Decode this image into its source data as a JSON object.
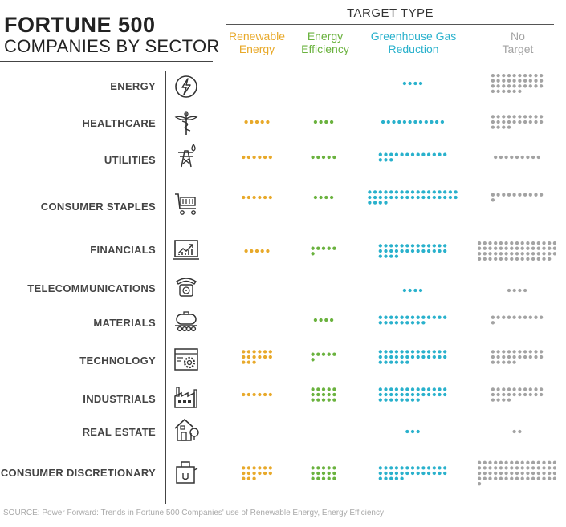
{
  "title": {
    "main": "FORTUNE 500",
    "sub": "COMPANIES BY SECTOR"
  },
  "group_header": "TARGET TYPE",
  "columns": [
    {
      "lines": [
        "Renewable",
        "Energy"
      ],
      "color": "#e8a92a"
    },
    {
      "lines": [
        "Energy",
        "Efficiency"
      ],
      "color": "#6ab23e"
    },
    {
      "lines": [
        "Greenhouse Gas",
        "Reduction"
      ],
      "color": "#29b1cc"
    },
    {
      "lines": [
        "No",
        "Target"
      ],
      "color": "#a3a3a3"
    }
  ],
  "chart_data": {
    "type": "table",
    "title": "FORTUNE 500 COMPANIES BY SECTOR",
    "series": [
      {
        "name": "Renewable Energy",
        "values": [
          0,
          5,
          6,
          6,
          5,
          0,
          0,
          15,
          6,
          0,
          15
        ]
      },
      {
        "name": "Energy Efficiency",
        "values": [
          0,
          4,
          5,
          4,
          6,
          0,
          4,
          6,
          15,
          0,
          15
        ]
      },
      {
        "name": "Greenhouse Gas Reduction",
        "values": [
          4,
          12,
          16,
          38,
          30,
          4,
          22,
          32,
          34,
          3,
          31
        ]
      },
      {
        "name": "No Target",
        "values": [
          36,
          24,
          9,
          11,
          59,
          4,
          11,
          25,
          24,
          2,
          61
        ]
      }
    ],
    "categories": [
      "ENERGY",
      "HEALTHCARE",
      "UTILITIES",
      "CONSUMER STAPLES",
      "FINANCIALS",
      "TELECOMMUNICATIONS",
      "MATERIALS",
      "TECHNOLOGY",
      "INDUSTRIALS",
      "REAL ESTATE",
      "CONSUMER DISCRETIONARY"
    ]
  },
  "sectors": [
    {
      "label": "ENERGY",
      "icon": "lightning-icon"
    },
    {
      "label": "HEALTHCARE",
      "icon": "caduceus-icon"
    },
    {
      "label": "UTILITIES",
      "icon": "power-tower-icon"
    },
    {
      "label": "CONSUMER STAPLES",
      "icon": "shopping-cart-icon"
    },
    {
      "label": "FINANCIALS",
      "icon": "chart-monitor-icon"
    },
    {
      "label": "TELECOMMUNICATIONS",
      "icon": "telephone-icon"
    },
    {
      "label": "MATERIALS",
      "icon": "tanker-icon"
    },
    {
      "label": "TECHNOLOGY",
      "icon": "gear-window-icon"
    },
    {
      "label": "INDUSTRIALS",
      "icon": "factory-icon"
    },
    {
      "label": "REAL ESTATE",
      "icon": "house-icon"
    },
    {
      "label": "CONSUMER DISCRETIONARY",
      "icon": "shopping-bag-icon"
    }
  ],
  "source": "SOURCE: Power Forward: Trends in Fortune 500 Companies' use of Renewable Energy, Energy Efficiency"
}
